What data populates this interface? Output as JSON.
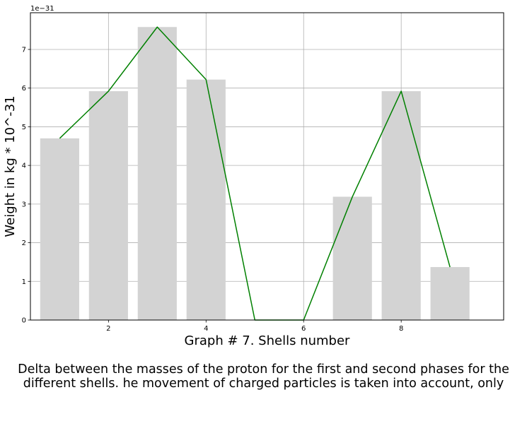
{
  "chart_data": {
    "type": "bar",
    "xlabel": "Graph # 7. Shells number",
    "ylabel": "Weight in kg * 10^-31",
    "offset_text": "1e−31",
    "x": [
      1,
      2,
      3,
      4,
      5,
      6,
      7,
      8,
      9
    ],
    "values": [
      4.7,
      5.92,
      7.58,
      6.22,
      0,
      0,
      3.19,
      5.92,
      1.37
    ],
    "line_values": [
      4.7,
      5.92,
      7.58,
      6.22,
      0,
      0,
      3.19,
      5.92,
      1.37
    ],
    "xlim": [
      0.4,
      10.1
    ],
    "ylim": [
      0,
      7.95
    ],
    "xticks": [
      2,
      4,
      6,
      8
    ],
    "yticks": [
      0,
      1,
      2,
      3,
      4,
      5,
      6,
      7
    ],
    "grid": true,
    "colors": {
      "bar": "#d3d3d3",
      "line": "#008000",
      "grid": "#b0b0b0"
    }
  },
  "caption": {
    "line1": "Delta between the masses of the proton for the first and second phases for the",
    "line2": "different shells. he movement of charged particles is taken into account, only"
  }
}
